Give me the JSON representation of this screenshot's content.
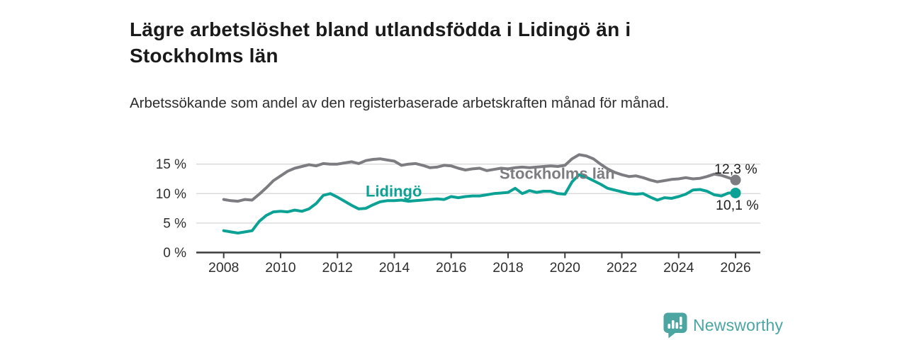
{
  "header": {
    "title": "Lägre arbetslöshet bland utlandsfödda i Lidingö än i Stockholms län",
    "subtitle": "Arbetssökande som andel av den registerbaserade arbetskraften månad för månad."
  },
  "chart_data": {
    "type": "line",
    "title": "Lägre arbetslöshet bland utlandsfödda i Lidingö än i Stockholms län",
    "subtitle": "Arbetssökande som andel av den registerbaserade arbetskraften månad för månad.",
    "xlabel": "",
    "ylabel": "",
    "x_start": 2008,
    "x_step": 0.25,
    "xlim": [
      2007.0,
      2026.9
    ],
    "ylim": [
      0,
      17.5
    ],
    "grid": true,
    "legend_position": "inline-labels",
    "x_ticks": [
      "2008",
      "2010",
      "2012",
      "2014",
      "2016",
      "2018",
      "2020",
      "2022",
      "2024",
      "2026"
    ],
    "x_tick_values": [
      2008,
      2010,
      2012,
      2014,
      2016,
      2018,
      2020,
      2022,
      2024,
      2026
    ],
    "y_ticks": [
      {
        "value": 0,
        "label": "0 %"
      },
      {
        "value": 5,
        "label": "5 %"
      },
      {
        "value": 10,
        "label": "10 %"
      },
      {
        "value": 15,
        "label": "15 %"
      }
    ],
    "series": [
      {
        "name": "Stockholms län",
        "color": "#7c7c81",
        "end_label": "12,3 %",
        "end_value": 12.3,
        "values": [
          9.0,
          8.8,
          8.7,
          9.0,
          8.9,
          9.9,
          11.0,
          12.2,
          13.0,
          13.8,
          14.3,
          14.6,
          14.9,
          14.7,
          15.1,
          15.0,
          15.0,
          15.2,
          15.4,
          15.1,
          15.6,
          15.8,
          15.9,
          15.7,
          15.5,
          14.8,
          15.0,
          15.1,
          14.8,
          14.4,
          14.5,
          14.8,
          14.7,
          14.3,
          14.0,
          14.2,
          14.3,
          13.9,
          14.1,
          14.3,
          14.2,
          14.4,
          14.5,
          14.4,
          14.5,
          14.6,
          14.7,
          14.6,
          14.8,
          15.9,
          16.6,
          16.4,
          15.9,
          15.0,
          14.2,
          13.6,
          13.2,
          12.9,
          13.0,
          12.7,
          12.3,
          12.0,
          12.2,
          12.4,
          12.5,
          12.7,
          12.5,
          12.6,
          12.9,
          13.3,
          13.1,
          12.7,
          12.3
        ]
      },
      {
        "name": "Lidingö",
        "color": "#0ba295",
        "end_label": "10,1 %",
        "end_value": 10.1,
        "values": [
          3.7,
          3.5,
          3.3,
          3.5,
          3.7,
          5.3,
          6.3,
          6.9,
          7.0,
          6.9,
          7.2,
          7.0,
          7.4,
          8.3,
          9.7,
          10.0,
          9.4,
          8.7,
          8.0,
          7.4,
          7.5,
          8.1,
          8.6,
          8.8,
          8.8,
          8.9,
          8.7,
          8.8,
          8.9,
          9.0,
          9.1,
          9.0,
          9.5,
          9.3,
          9.5,
          9.6,
          9.6,
          9.8,
          10.0,
          10.1,
          10.2,
          10.9,
          10.0,
          10.5,
          10.2,
          10.4,
          10.4,
          10.0,
          9.9,
          12.0,
          13.2,
          12.8,
          12.2,
          11.6,
          10.9,
          10.6,
          10.3,
          10.0,
          9.9,
          10.0,
          9.4,
          8.9,
          9.3,
          9.2,
          9.5,
          9.9,
          10.6,
          10.7,
          10.4,
          9.8,
          9.6,
          10.1,
          10.1
        ]
      }
    ]
  },
  "branding": {
    "logo_text": "Newsworthy",
    "logo_color": "#4ba5a1",
    "logo_icon": "speech-bubble-bar-chart"
  },
  "colors": {
    "title": "#1a1a1a",
    "subtitle": "#2d2d2d",
    "axis_line": "#3d3d3d",
    "gridline": "#d9d9d9",
    "tick_label": "#2f2f2f",
    "annotation": "#1f1f1f"
  }
}
